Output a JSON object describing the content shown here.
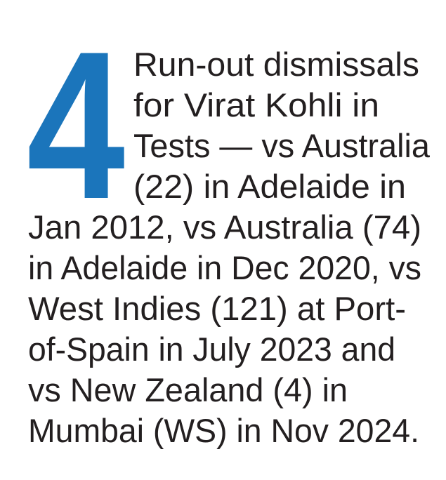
{
  "big_number": "4",
  "lines": [
    "Run-out dismissals",
    "for Virat Kohli in",
    "Tests — vs Australia",
    "(22) in Adelaide in",
    "Jan 2012, vs Australia (74)",
    "in Adelaide in Dec 2020, vs",
    "West Indies (121) at Port-",
    "of-Spain in July 2023 and",
    "vs New Zealand (4) in",
    "Mumbai (WS) in Nov 2024."
  ]
}
